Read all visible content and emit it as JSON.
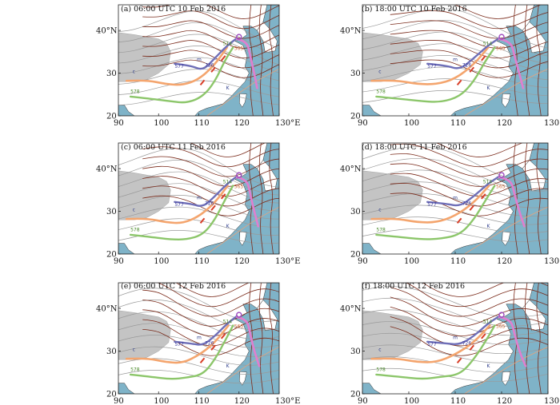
{
  "figure": {
    "panels": [
      {
        "id": "a",
        "title": "(a) 06:00 UTC 10 Feb 2016"
      },
      {
        "id": "b",
        "title": "(b) 18:00 UTC 10 Feb 2016"
      },
      {
        "id": "c",
        "title": "(c) 06:00 UTC 11 Feb 2016"
      },
      {
        "id": "d",
        "title": "(d) 18:00 UTC 11 Feb 2016"
      },
      {
        "id": "e",
        "title": "(e) 06:00 UTC 12 Feb 2016"
      },
      {
        "id": "f",
        "title": "(f) 18:00 UTC 12 Feb 2016"
      }
    ],
    "x_ticks": [
      "90",
      "100",
      "110",
      "120",
      "130°E"
    ],
    "y_ticks": [
      "40°N",
      "30",
      "20"
    ],
    "line_labels": {
      "trough_c": "c",
      "trough_m": "m",
      "front_K": "K",
      "v577": "577",
      "v514": "514",
      "v726": "726",
      "v565": "565",
      "v578": "578"
    },
    "colors": {
      "ocean": "#7fb3c8",
      "plateau": "#c4c4c4",
      "height_contour": "#9a9a9a",
      "temp_contour": "#7a2a1a",
      "orange_line": "#f4a56e",
      "green_line": "#8cc66a",
      "blue_line": "#6f6fb8",
      "pink_line": "#e07fcf",
      "red_marker": "#d8402a"
    }
  }
}
